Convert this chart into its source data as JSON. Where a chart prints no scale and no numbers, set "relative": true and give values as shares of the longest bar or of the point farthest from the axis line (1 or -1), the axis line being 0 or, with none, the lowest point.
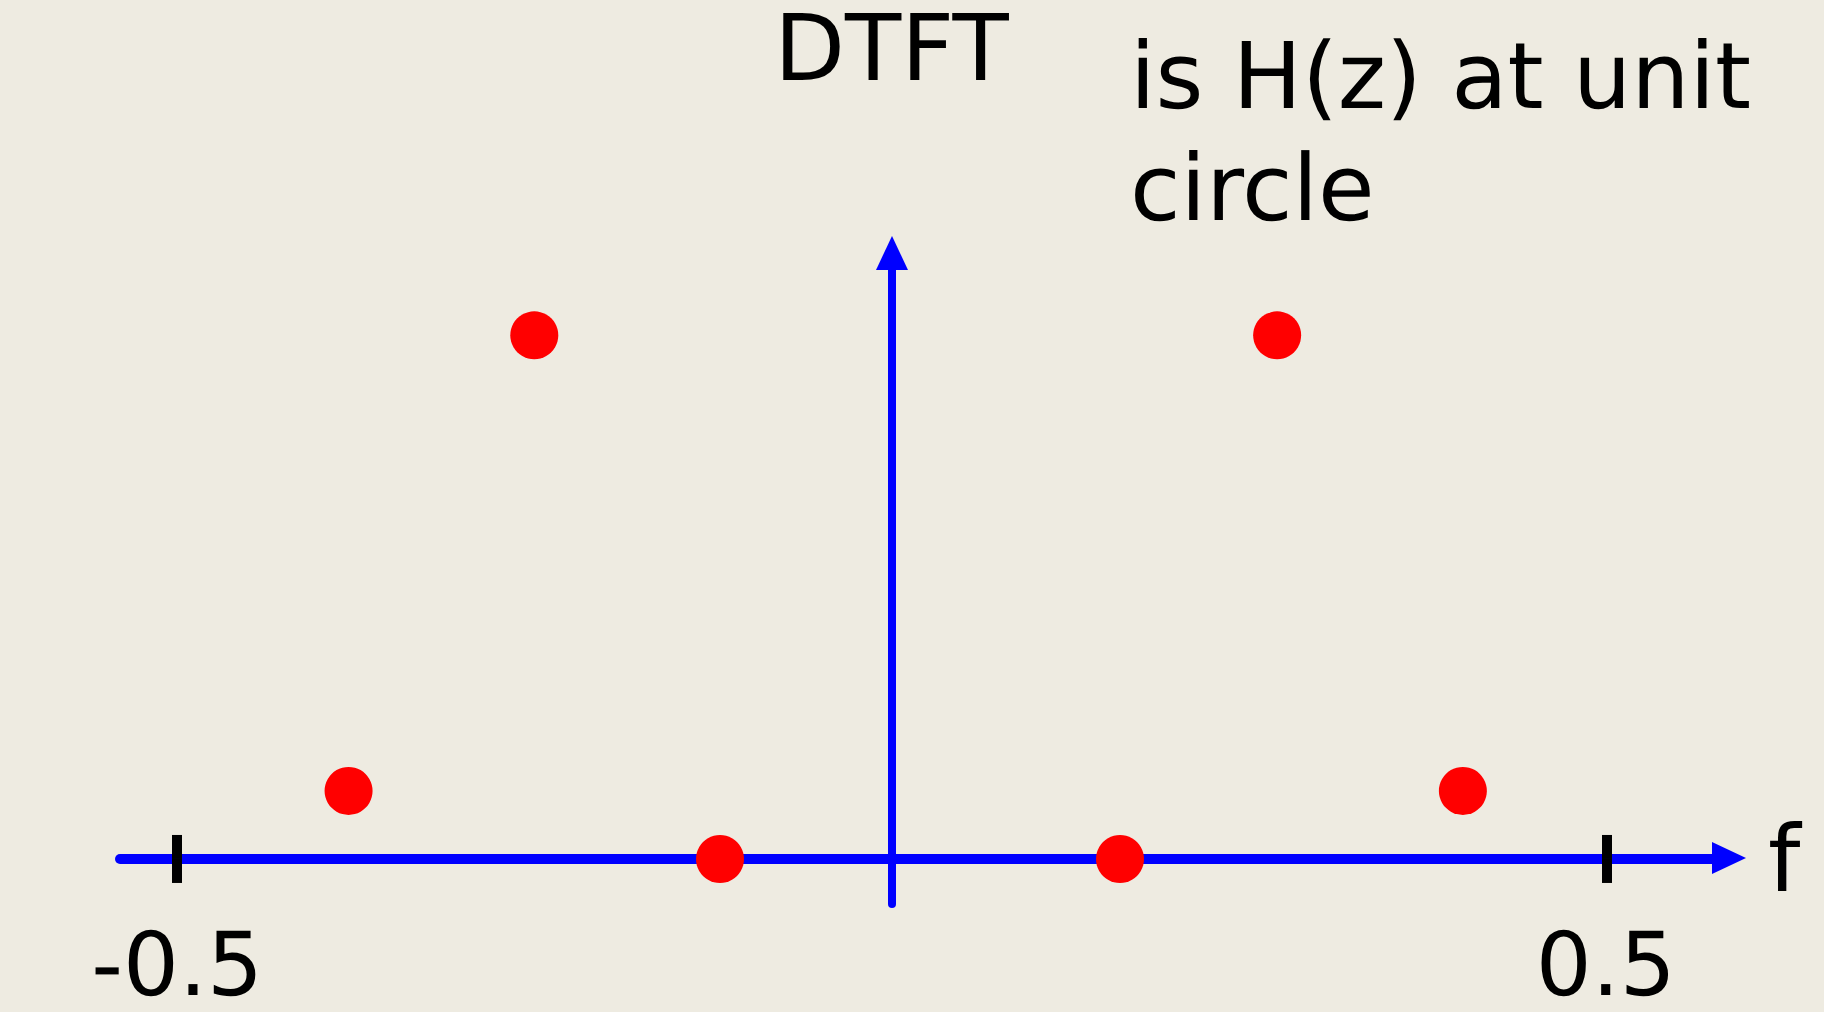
{
  "chart_data": {
    "type": "scatter",
    "ylabel": "DTFT",
    "xlabel": "f",
    "annotations": [
      "is H(z) at unit circle"
    ],
    "x": [
      -0.38,
      -0.25,
      -0.12,
      0.16,
      0.27,
      0.4
    ],
    "values": [
      0.13,
      1,
      0,
      0,
      1,
      0.13
    ],
    "color": "#ff0000",
    "marker": "circle",
    "relative": true,
    "xlim": [
      -0.54,
      0.58
    ],
    "xticks": [
      -0.5,
      0.5
    ],
    "ref_lines": [
      {
        "axis": "x",
        "value": 0,
        "color": "#0000ff"
      }
    ]
  }
}
